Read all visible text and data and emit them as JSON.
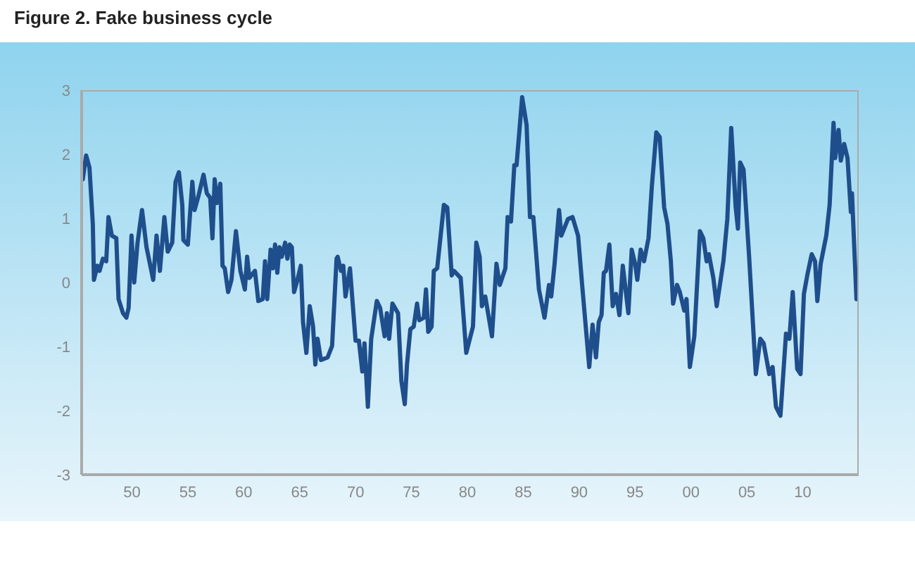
{
  "chart_data": {
    "type": "line",
    "title": "Figure 2. Fake business cycle",
    "x": [
      1945.6,
      1945.9,
      1946.2,
      1946.5,
      1946.6,
      1946.9,
      1947.1,
      1947.4,
      1947.7,
      1947.9,
      1948.2,
      1948.6,
      1948.8,
      1949.2,
      1949.5,
      1949.7,
      1949.96,
      1950.2,
      1950.5,
      1950.9,
      1951.3,
      1951.9,
      1952.2,
      1952.5,
      1952.9,
      1953.2,
      1953.6,
      1953.9,
      1954.2,
      1954.5,
      1954.6,
      1955.0,
      1955.4,
      1955.6,
      1955.95,
      1956.4,
      1956.7,
      1957.0,
      1957.2,
      1957.4,
      1957.6,
      1957.9,
      1958.1,
      1958.3,
      1958.6,
      1958.9,
      1959.3,
      1959.7,
      1960.1,
      1960.3,
      1960.5,
      1961.0,
      1961.3,
      1961.7,
      1961.9,
      1962.1,
      1962.4,
      1962.6,
      1962.8,
      1963.0,
      1963.2,
      1963.4,
      1963.7,
      1963.9,
      1964.1,
      1964.3,
      1964.5,
      1964.8,
      1965.1,
      1965.3,
      1965.6,
      1965.9,
      1966.2,
      1966.4,
      1966.6,
      1966.9,
      1967.5,
      1967.9,
      1968.3,
      1968.4,
      1968.7,
      1968.9,
      1969.1,
      1969.5,
      1970.0,
      1970.3,
      1970.6,
      1970.8,
      1971.1,
      1971.4,
      1971.9,
      1972.2,
      1972.6,
      1972.8,
      1973.0,
      1973.3,
      1973.8,
      1974.1,
      1974.4,
      1974.6,
      1974.9,
      1975.2,
      1975.5,
      1975.7,
      1976.1,
      1976.3,
      1976.5,
      1976.8,
      1977.0,
      1977.3,
      1977.9,
      1978.2,
      1978.6,
      1978.8,
      1979.4,
      1979.9,
      1980.5,
      1980.8,
      1981.1,
      1981.3,
      1981.6,
      1982.2,
      1982.6,
      1982.9,
      1983.4,
      1983.6,
      1983.9,
      1984.2,
      1984.4,
      1984.9,
      1985.3,
      1985.6,
      1985.9,
      1986.4,
      1986.9,
      1987.3,
      1987.5,
      1987.8,
      1988.2,
      1988.4,
      1989.0,
      1989.4,
      1989.9,
      1990.3,
      1990.9,
      1991.2,
      1991.5,
      1991.75,
      1992.0,
      1992.2,
      1992.4,
      1992.7,
      1993.0,
      1993.3,
      1993.6,
      1993.9,
      1994.4,
      1994.7,
      1995.0,
      1995.2,
      1995.5,
      1995.8,
      1996.2,
      1996.5,
      1996.9,
      1997.2,
      1997.6,
      1997.9,
      1998.2,
      1998.4,
      1998.75,
      1999.0,
      1999.4,
      1999.6,
      1999.9,
      2000.3,
      2000.8,
      2001.1,
      2001.4,
      2001.6,
      2002.0,
      2002.3,
      2002.9,
      2003.25,
      2003.6,
      2004.0,
      2004.2,
      2004.4,
      2004.7,
      2005.2,
      2005.8,
      2006.2,
      2006.5,
      2007.0,
      2007.3,
      2007.6,
      2008.0,
      2008.5,
      2008.8,
      2009.1,
      2009.5,
      2009.8,
      2010.1,
      2010.4,
      2010.8,
      2011.1,
      2011.3,
      2011.6,
      2012.1,
      2012.4,
      2012.75,
      2012.9,
      2013.2,
      2013.4,
      2013.7,
      2014.0,
      2014.3,
      2014.4,
      2014.8
    ],
    "series": [
      {
        "color": "#1f4e8c",
        "values": [
          1.61,
          1.98,
          1.79,
          0.91,
          0.04,
          0.26,
          0.18,
          0.37,
          0.33,
          1.02,
          0.73,
          0.69,
          -0.26,
          -0.48,
          -0.55,
          -0.4,
          0.73,
          0.0,
          0.62,
          1.13,
          0.55,
          0.04,
          0.73,
          0.18,
          1.02,
          0.48,
          0.62,
          1.57,
          1.72,
          1.21,
          0.66,
          0.59,
          1.57,
          1.13,
          1.35,
          1.68,
          1.39,
          1.32,
          0.69,
          1.61,
          1.24,
          1.54,
          0.26,
          0.22,
          -0.15,
          0.04,
          0.8,
          0.18,
          -0.11,
          0.4,
          0.07,
          0.18,
          -0.29,
          -0.26,
          0.33,
          -0.26,
          0.51,
          0.22,
          0.59,
          0.15,
          0.55,
          0.4,
          0.62,
          0.37,
          0.59,
          0.55,
          -0.15,
          0.04,
          0.26,
          -0.62,
          -1.1,
          -0.37,
          -0.69,
          -1.28,
          -0.88,
          -1.21,
          -1.17,
          -0.99,
          0.37,
          0.4,
          0.18,
          0.26,
          -0.22,
          0.22,
          -0.91,
          -0.91,
          -1.39,
          -0.95,
          -1.94,
          -0.88,
          -0.29,
          -0.4,
          -0.84,
          -0.48,
          -0.88,
          -0.33,
          -0.48,
          -1.54,
          -1.9,
          -1.28,
          -0.73,
          -0.69,
          -0.33,
          -0.59,
          -0.55,
          -0.11,
          -0.77,
          -0.69,
          0.18,
          0.22,
          1.21,
          1.17,
          0.11,
          0.18,
          0.07,
          -1.1,
          -0.69,
          0.62,
          0.4,
          -0.37,
          -0.22,
          -0.84,
          0.29,
          -0.04,
          0.22,
          1.02,
          0.95,
          1.83,
          1.83,
          2.89,
          2.45,
          1.02,
          1.02,
          -0.11,
          -0.55,
          -0.04,
          -0.22,
          0.29,
          1.13,
          0.73,
          0.99,
          1.02,
          0.73,
          -0.11,
          -1.32,
          -0.66,
          -1.17,
          -0.62,
          -0.51,
          0.15,
          0.18,
          0.59,
          -0.37,
          -0.18,
          -0.51,
          0.26,
          -0.48,
          0.51,
          0.29,
          0.04,
          0.51,
          0.33,
          0.69,
          1.5,
          2.34,
          2.27,
          1.17,
          0.91,
          0.33,
          -0.33,
          -0.04,
          -0.15,
          -0.44,
          -0.26,
          -1.32,
          -0.84,
          0.8,
          0.69,
          0.33,
          0.44,
          0.07,
          -0.37,
          0.33,
          0.99,
          2.41,
          1.17,
          0.84,
          1.87,
          1.76,
          0.4,
          -1.43,
          -0.88,
          -0.95,
          -1.43,
          -1.32,
          -1.94,
          -2.08,
          -0.8,
          -0.88,
          -0.15,
          -1.35,
          -1.43,
          -0.18,
          0.11,
          0.44,
          0.33,
          -0.29,
          0.29,
          0.73,
          1.21,
          2.49,
          1.94,
          2.38,
          1.9,
          2.16,
          1.94,
          1.1,
          1.39,
          -0.26
        ]
      }
    ],
    "xlim": [
      1945.5,
      2015
    ],
    "xticks": [
      {
        "value": 1950,
        "label": "50"
      },
      {
        "value": 1955,
        "label": "55"
      },
      {
        "value": 1960,
        "label": "60"
      },
      {
        "value": 1965,
        "label": "65"
      },
      {
        "value": 1970,
        "label": "70"
      },
      {
        "value": 1975,
        "label": "75"
      },
      {
        "value": 1980,
        "label": "80"
      },
      {
        "value": 1985,
        "label": "85"
      },
      {
        "value": 1990,
        "label": "90"
      },
      {
        "value": 1995,
        "label": "95"
      },
      {
        "value": 2000,
        "label": "00"
      },
      {
        "value": 2005,
        "label": "05"
      },
      {
        "value": 2010,
        "label": "10"
      }
    ],
    "ylim": [
      -3,
      3
    ],
    "yticks": [
      -3,
      -2,
      -1,
      0,
      1,
      2,
      3
    ],
    "grid": false,
    "legend": false,
    "marker": "none",
    "line_style": "solid"
  }
}
